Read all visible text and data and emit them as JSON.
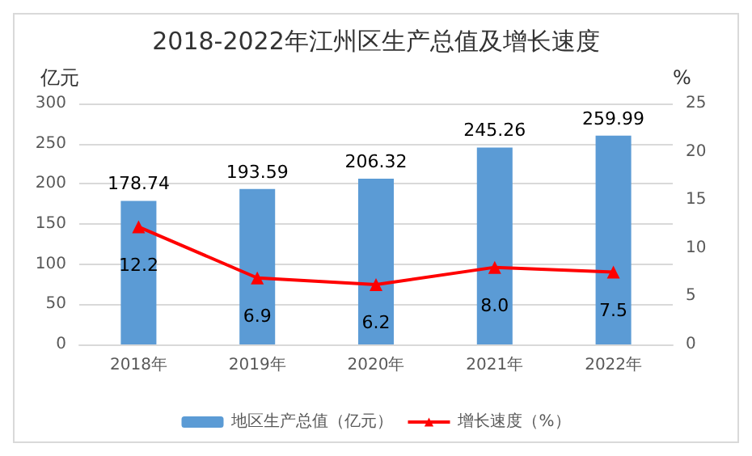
{
  "chart_data": {
    "type": "bar",
    "title": "2018-2022年江州区生产总值及增长速度",
    "ylabel": "亿元",
    "y2label": "%",
    "categories": [
      "2018年",
      "2019年",
      "2020年",
      "2021年",
      "2022年"
    ],
    "series": [
      {
        "name": "地区生产总值（亿元）",
        "color": "#5b9bd5",
        "values": [
          178.74,
          193.59,
          206.32,
          245.26,
          259.99
        ]
      },
      {
        "name": "增长速度（%）",
        "type": "line",
        "axis": "y2",
        "color": "#ff0000",
        "marker": "triangle",
        "values": [
          12.2,
          6.9,
          6.2,
          8.0,
          7.5
        ],
        "value_labels": [
          "12.2",
          "6.9",
          "6.2",
          "8.0",
          "7.5"
        ]
      }
    ],
    "data_labels": true,
    "ylim": [
      0,
      300
    ],
    "yticks": [
      0,
      50,
      100,
      150,
      200,
      250,
      300
    ],
    "y2lim": [
      0,
      25
    ],
    "y2ticks": [
      0,
      5,
      10,
      15,
      20,
      25
    ],
    "grid": "y",
    "legend": "bottom"
  }
}
